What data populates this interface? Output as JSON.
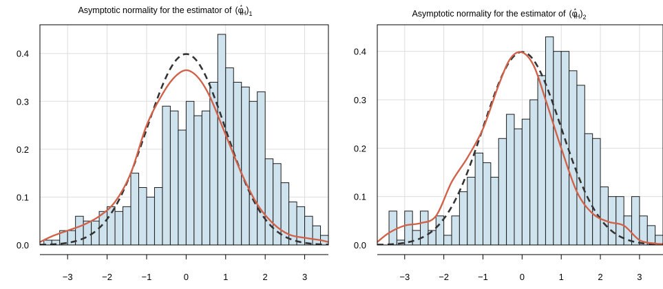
{
  "colors": {
    "bar_fill": "#cfe3ee",
    "bar_stroke": "#1a1a1a",
    "kde_line": "#d0624a",
    "normal_line": "#333333",
    "grid": "#dddddd",
    "axis": "#000000"
  },
  "chart_data": [
    {
      "type": "bar",
      "title": "Asymptotic normality for the estimator of",
      "title_symbol": "(φ",
      "title_superscript": "*",
      "title_subscript_inner": "H",
      "title_close": ")",
      "title_subscript_outer": "1",
      "xlim": [
        -3.7,
        3.6
      ],
      "ylim": [
        0,
        0.46
      ],
      "xticks": [
        -3,
        -2,
        -1,
        0,
        1,
        2,
        3
      ],
      "xtick_labels": [
        "−3",
        "−2",
        "−1",
        "0",
        "1",
        "2",
        "3"
      ],
      "yticks": [
        0.0,
        0.1,
        0.2,
        0.3,
        0.4
      ],
      "ytick_labels": [
        "0.0",
        "0.1",
        "0.2",
        "0.3",
        "0.4"
      ],
      "grid": true,
      "bin_start": -3.6,
      "bin_width": 0.2,
      "bin_density": [
        0.01,
        0.01,
        0.03,
        0.03,
        0.06,
        0.05,
        0.05,
        0.07,
        0.08,
        0.07,
        0.08,
        0.15,
        0.12,
        0.1,
        0.12,
        0.29,
        0.28,
        0.24,
        0.3,
        0.27,
        0.28,
        0.34,
        0.44,
        0.37,
        0.34,
        0.33,
        0.3,
        0.32,
        0.18,
        0.17,
        0.13,
        0.09,
        0.08,
        0.06,
        0.04,
        0.02,
        0.02,
        0.01,
        0.0,
        0.02,
        0.0,
        0.01
      ],
      "kde": {
        "x": [
          -3.7,
          -3.4,
          -3.0,
          -2.6,
          -2.2,
          -1.8,
          -1.4,
          -1.0,
          -0.6,
          -0.3,
          0.0,
          0.3,
          0.6,
          1.0,
          1.4,
          1.8,
          2.2,
          2.6,
          3.0,
          3.4,
          3.6
        ],
        "y": [
          0.006,
          0.018,
          0.03,
          0.042,
          0.06,
          0.09,
          0.15,
          0.25,
          0.315,
          0.35,
          0.365,
          0.35,
          0.31,
          0.23,
          0.15,
          0.085,
          0.045,
          0.022,
          0.015,
          0.01,
          0.006
        ]
      },
      "normal_reference": {
        "mean": 0,
        "sd": 1
      }
    },
    {
      "type": "bar",
      "title": "Asymptotic normality for the estimator of",
      "title_symbol": "(φ",
      "title_superscript": "*",
      "title_subscript_inner": "H",
      "title_close": ")",
      "title_subscript_outer": "2",
      "xlim": [
        -3.7,
        3.6
      ],
      "ylim": [
        0,
        0.455
      ],
      "xticks": [
        -3,
        -2,
        -1,
        0,
        1,
        2,
        3
      ],
      "xtick_labels": [
        "−3",
        "−2",
        "−1",
        "0",
        "1",
        "2",
        "3"
      ],
      "yticks": [
        0.0,
        0.1,
        0.2,
        0.3,
        0.4
      ],
      "ytick_labels": [
        "0.0",
        "0.1",
        "0.2",
        "0.3",
        "0.4"
      ],
      "grid": true,
      "bin_start": -3.4,
      "bin_width": 0.2,
      "bin_density": [
        0.07,
        0.01,
        0.07,
        0.03,
        0.07,
        0.03,
        0.06,
        0.02,
        0.06,
        0.11,
        0.14,
        0.19,
        0.17,
        0.14,
        0.22,
        0.27,
        0.24,
        0.26,
        0.3,
        0.35,
        0.43,
        0.4,
        0.4,
        0.36,
        0.33,
        0.23,
        0.22,
        0.12,
        0.1,
        0.1,
        0.06,
        0.1,
        0.06,
        0.04,
        0.02,
        0.01,
        0.03,
        0.0,
        0.0,
        0.0,
        0.01
      ],
      "kde": {
        "x": [
          -3.7,
          -3.4,
          -3.0,
          -2.6,
          -2.2,
          -1.8,
          -1.4,
          -1.0,
          -0.6,
          -0.3,
          0.0,
          0.3,
          0.6,
          1.0,
          1.4,
          1.8,
          2.2,
          2.6,
          3.0,
          3.4,
          3.6
        ],
        "y": [
          0.006,
          0.025,
          0.04,
          0.045,
          0.06,
          0.13,
          0.18,
          0.24,
          0.33,
          0.385,
          0.398,
          0.37,
          0.3,
          0.2,
          0.11,
          0.065,
          0.048,
          0.04,
          0.01,
          0.003,
          0.002
        ]
      },
      "normal_reference": {
        "mean": 0,
        "sd": 1
      }
    }
  ]
}
